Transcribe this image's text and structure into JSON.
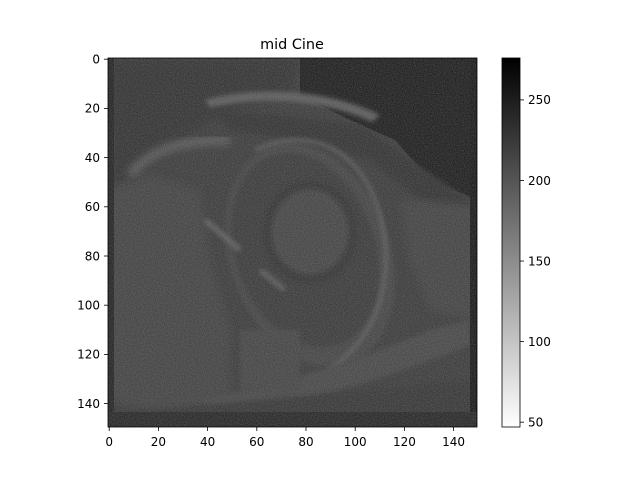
{
  "title": "mid Cine",
  "image": {
    "x_ticks": [
      "0",
      "20",
      "40",
      "60",
      "80",
      "100",
      "120",
      "140"
    ],
    "y_ticks": [
      "0",
      "20",
      "40",
      "60",
      "80",
      "100",
      "120",
      "140"
    ],
    "x_range": [
      0,
      150
    ],
    "y_range": [
      0,
      150
    ],
    "colormap": "gray_r",
    "content": "cardiac-mri-mid-ventricle-cine-slice"
  },
  "colorbar": {
    "ticks": [
      "50",
      "100",
      "150",
      "200",
      "250"
    ],
    "min": 47,
    "max": 276,
    "top_color": "#000000",
    "bottom_color": "#ffffff"
  }
}
